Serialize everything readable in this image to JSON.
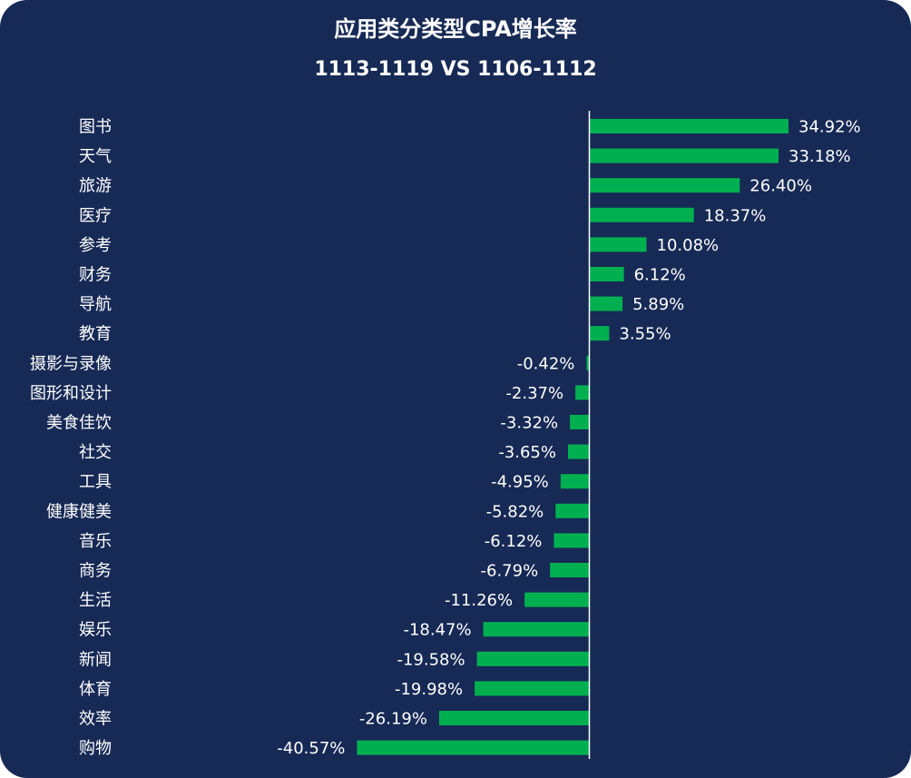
{
  "colors": {
    "background": "#172a56",
    "bar": "#00b050",
    "text": "#ffffff",
    "axis": "#ffffff"
  },
  "chart_data": {
    "type": "bar",
    "orientation": "horizontal",
    "title": "应用类分类型CPA增长率",
    "subtitle": "1113-1119 VS 1106-1112",
    "categories": [
      "图书",
      "天气",
      "旅游",
      "医疗",
      "参考",
      "财务",
      "导航",
      "教育",
      "摄影与录像",
      "图形和设计",
      "美食佳饮",
      "社交",
      "工具",
      "健康健美",
      "音乐",
      "商务",
      "生活",
      "娱乐",
      "新闻",
      "体育",
      "效率",
      "购物"
    ],
    "values": [
      34.92,
      33.18,
      26.4,
      18.37,
      10.08,
      6.12,
      5.89,
      3.55,
      -0.42,
      -2.37,
      -3.32,
      -3.65,
      -4.95,
      -5.82,
      -6.12,
      -6.79,
      -11.26,
      -18.47,
      -19.58,
      -19.98,
      -26.19,
      -40.57
    ],
    "value_labels": [
      "34.92%",
      "33.18%",
      "26.40%",
      "18.37%",
      "10.08%",
      "6.12%",
      "5.89%",
      "3.55%",
      "-0.42%",
      "-2.37%",
      "-3.32%",
      "-3.65%",
      "-4.95%",
      "-5.82%",
      "-6.12%",
      "-6.79%",
      "-11.26%",
      "-18.47%",
      "-19.58%",
      "-19.98%",
      "-26.19%",
      "-40.57%"
    ],
    "unit": "%",
    "xlim": [
      -40.57,
      34.92
    ],
    "grid": false,
    "legend": "none"
  }
}
